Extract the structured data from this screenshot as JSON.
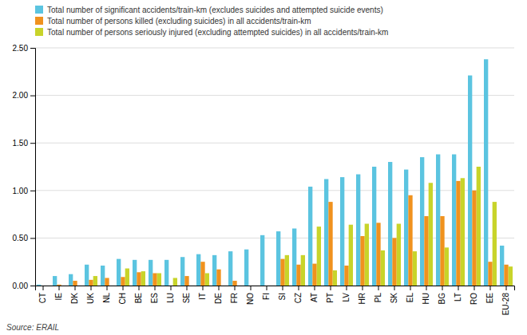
{
  "chart_data": {
    "type": "bar",
    "categories": [
      "CT",
      "IE",
      "DK",
      "UK",
      "NL",
      "CH",
      "BE",
      "ES",
      "LU",
      "SE",
      "IT",
      "DE",
      "FR",
      "NO",
      "FI",
      "SI",
      "CZ",
      "AT",
      "PT",
      "LV",
      "HR",
      "PL",
      "SK",
      "EL",
      "HU",
      "BG",
      "LT",
      "RO",
      "EE",
      "EU-28"
    ],
    "series": [
      {
        "name": "Total number of significant accidents/train-km (excludes suicides and attempted suicide events)",
        "color": "#5bc4e0",
        "values": [
          0.01,
          0.1,
          0.12,
          0.22,
          0.21,
          0.28,
          0.27,
          0.27,
          0.27,
          0.3,
          0.33,
          0.32,
          0.36,
          0.38,
          0.53,
          0.57,
          0.6,
          1.04,
          1.12,
          1.14,
          1.17,
          1.25,
          1.3,
          1.22,
          1.35,
          1.38,
          1.38,
          2.21,
          2.38,
          0.42
        ]
      },
      {
        "name": "Total number of persons killed (excluding suicides) in all accidents/train-km",
        "color": "#f0921e",
        "values": [
          0.0,
          0.01,
          0.05,
          0.06,
          0.08,
          0.09,
          0.14,
          0.13,
          0.0,
          0.1,
          0.25,
          0.17,
          0.05,
          0.0,
          0.0,
          0.28,
          0.22,
          0.23,
          0.88,
          0.21,
          0.52,
          0.66,
          0.5,
          0.95,
          0.73,
          0.73,
          1.1,
          1.0,
          0.25,
          0.22
        ]
      },
      {
        "name": "Total number of persons seriously injured (excluding attempted suicides) in all accidents/train-km",
        "color": "#c8d42a",
        "values": [
          0.0,
          0.0,
          0.0,
          0.1,
          0.0,
          0.18,
          0.15,
          0.13,
          0.08,
          0.0,
          0.13,
          0.0,
          0.0,
          0.0,
          0.0,
          0.32,
          0.32,
          0.62,
          0.16,
          0.64,
          0.65,
          0.37,
          0.65,
          0.36,
          1.08,
          0.4,
          1.13,
          1.25,
          0.88,
          0.2
        ]
      }
    ],
    "ylim": [
      0,
      2.5
    ],
    "yticks": [
      {
        "value": 0,
        "label": "0.00"
      },
      {
        "value": 0.5,
        "label": "0.50"
      },
      {
        "value": 1,
        "label": "1.00"
      },
      {
        "value": 1.5,
        "label": "1.50"
      },
      {
        "value": 2,
        "label": "2.00"
      },
      {
        "value": 2.5,
        "label": "2.50"
      }
    ],
    "grid": true,
    "legend": "upper left",
    "annotations": [
      "Source: ERAIL"
    ]
  }
}
